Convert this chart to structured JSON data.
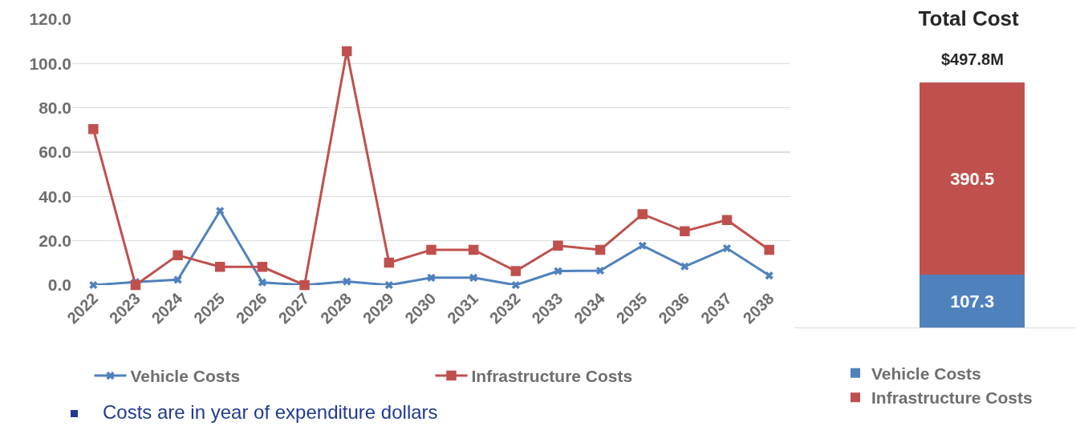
{
  "chart_data": [
    {
      "type": "line",
      "categories": [
        "2022",
        "2023",
        "2024",
        "2025",
        "2026",
        "2027",
        "2028",
        "2029",
        "2030",
        "2031",
        "2032",
        "2033",
        "2034",
        "2035",
        "2036",
        "2037",
        "2038"
      ],
      "series": [
        {
          "name": "Vehicle Costs",
          "color": "#4f81bd",
          "marker": "cross",
          "values": [
            0,
            1.4,
            2.4,
            33.5,
            1.2,
            0,
            1.6,
            0,
            3.3,
            3.3,
            0,
            6.3,
            6.5,
            17.8,
            8.4,
            16.6,
            4.3
          ]
        },
        {
          "name": "Infrastructure Costs",
          "color": "#c0504d",
          "marker": "square",
          "values": [
            70.4,
            0,
            13.5,
            8.2,
            8.2,
            0,
            105.5,
            10.1,
            15.9,
            15.9,
            6.3,
            17.8,
            15.9,
            32.0,
            24.3,
            29.4,
            15.9
          ]
        }
      ],
      "ylim": [
        0,
        120
      ],
      "yticks": [
        {
          "value": 0,
          "label": "0.0"
        },
        {
          "value": 20,
          "label": "20.0"
        },
        {
          "value": 40,
          "label": "40.0"
        },
        {
          "value": 60,
          "label": "60.0"
        },
        {
          "value": 80,
          "label": "80.0"
        },
        {
          "value": 100,
          "label": "100.0"
        },
        {
          "value": 120,
          "label": "120.0"
        }
      ],
      "grid": "y",
      "legend": "bottom",
      "line_style": "solid",
      "annotations": [
        "Costs are in year of expenditure dollars"
      ]
    },
    {
      "type": "bar",
      "title": "Total Cost",
      "stacked": true,
      "categories": [
        null
      ],
      "series": [
        {
          "name": "Vehicle Costs",
          "color": "#4f81bd",
          "values": [
            107.3
          ]
        },
        {
          "name": "Infrastructure Costs",
          "color": "#c0504d",
          "values": [
            390.5
          ]
        }
      ],
      "data_labels": true,
      "totals": [
        "$497.8M"
      ],
      "legend": "bottom",
      "grid": false
    }
  ]
}
